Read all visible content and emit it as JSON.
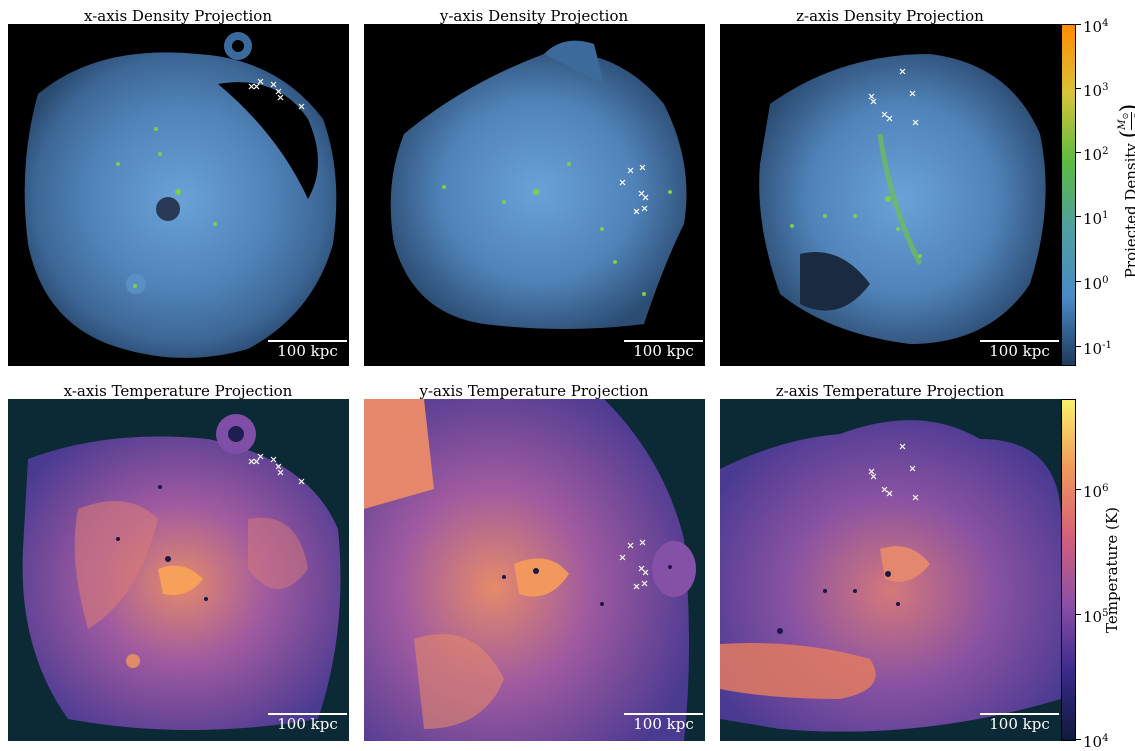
{
  "panels": [
    {
      "title": "x-axis Density Projection",
      "scale_label": "100 kpc"
    },
    {
      "title": "y-axis Density Projection",
      "scale_label": "100 kpc"
    },
    {
      "title": "z-axis Density Projection",
      "scale_label": "100 kpc"
    },
    {
      "title": "x-axis Temperature Projection",
      "scale_label": "100 kpc"
    },
    {
      "title": "y-axis Temperature Projection",
      "scale_label": "100 kpc"
    },
    {
      "title": "z-axis Temperature Projection",
      "scale_label": "100 kpc"
    }
  ],
  "density_colorbar": {
    "label_main": "Projected Density",
    "label_unit_num": "M",
    "label_unit_num_sub": "⊙",
    "label_unit_den": "pc",
    "label_unit_den_sup": "2",
    "ticks": [
      {
        "base": "10",
        "exp": "4"
      },
      {
        "base": "10",
        "exp": "3"
      },
      {
        "base": "10",
        "exp": "2"
      },
      {
        "base": "10",
        "exp": "1"
      },
      {
        "base": "10",
        "exp": "0"
      },
      {
        "base": "10",
        "exp": "-1"
      }
    ],
    "colors": [
      "#ff8c00",
      "#d9c33a",
      "#5dbb3f",
      "#4e9fa0",
      "#4a8ac7",
      "#1f3a5a"
    ]
  },
  "temperature_colorbar": {
    "label": "Temperature  (K)",
    "ticks": [
      {
        "base": "10",
        "exp": "6"
      },
      {
        "base": "10",
        "exp": "5"
      },
      {
        "base": "10",
        "exp": "4"
      }
    ],
    "colors": [
      "#f8f06a",
      "#f0985a",
      "#d5607a",
      "#8c4fa6",
      "#3a2a8c",
      "#0f1a3a"
    ]
  }
}
